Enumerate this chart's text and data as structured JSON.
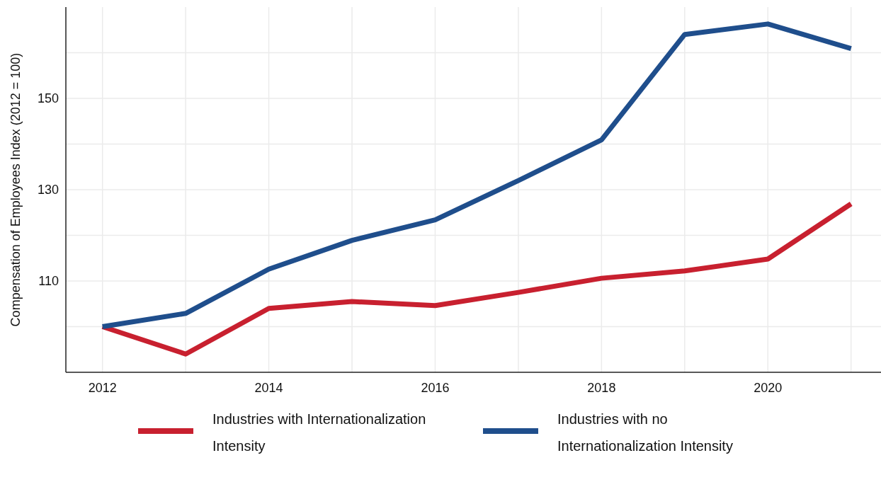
{
  "chart_data": {
    "type": "line",
    "ylabel": "Compensation of Employees Index (2012 = 100)",
    "x": [
      2012,
      2013,
      2014,
      2015,
      2016,
      2017,
      2018,
      2019,
      2020,
      2021
    ],
    "xlim": [
      2011.56,
      2021.36
    ],
    "xticks": [
      2012,
      {
        "value": 2013,
        "label": null
      },
      2014,
      {
        "value": 2015,
        "label": null
      },
      2016,
      {
        "value": 2017,
        "label": null
      },
      2018,
      {
        "value": 2019,
        "label": null
      },
      2020,
      {
        "value": 2021,
        "label": null
      }
    ],
    "ylim": [
      90,
      170
    ],
    "yticks": [
      {
        "value": 100,
        "label": null
      },
      110,
      {
        "value": 120,
        "label": null
      },
      130,
      {
        "value": 140,
        "label": null
      },
      150,
      {
        "value": 160,
        "label": null
      }
    ],
    "grid": true,
    "legend": "bottom",
    "line_style": "solid",
    "marker": "none",
    "series": [
      {
        "name": "Industries with Internationalization Intensity",
        "color": "#c8202f",
        "values": [
          100,
          94,
          104,
          105.5,
          104.6,
          107.5,
          110.6,
          112.2,
          114.8,
          126.9
        ]
      },
      {
        "name": "Industries with no Internationalization Intensity",
        "color": "#1f4e8c",
        "values": [
          100,
          102.9,
          112.6,
          118.9,
          123.4,
          132,
          140.9,
          164,
          166.3,
          160.9
        ]
      }
    ]
  }
}
